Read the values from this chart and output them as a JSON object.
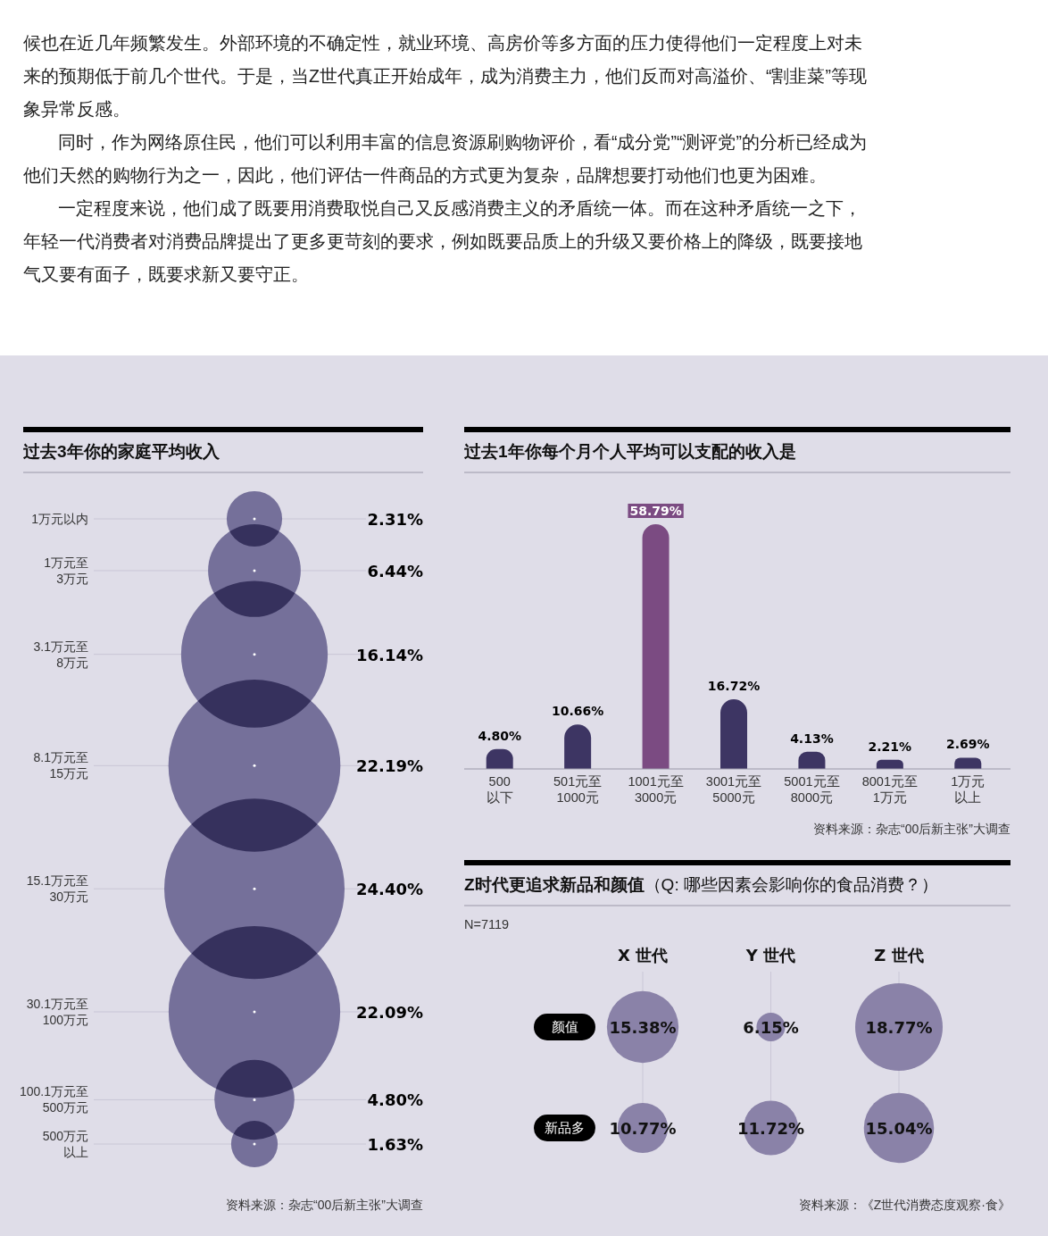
{
  "chart_data": [
    {
      "type": "other",
      "annotations": [
        "候也在近几年频繁发生。外部环境的不确定性，就业环境、高房价等多方面的压力使得他们一定程度上对未来的预期低于前几个世代。于是，当Z世代真正开始成年，成为消费主力，他们反而对高溢价、“割韭菜”等现象异常反感。",
        "同时，作为网络原住民，他们可以利用丰富的信息资源刷购物评价，看“成分党”“测评党”的分析已经成为他们天然的购物行为之一，因此，他们评估一件商品的方式更为复杂，品牌想要打动他们也更为困难。",
        "一定程度来说，他们成了既要用消费取悦自己又反感消费主义的矛盾统一体。而在这种矛盾统一之下，年轻一代消费者对消费品牌提出了更多更苛刻的要求，例如既要品质上的升级又要价格上的降级，既要接地气又要有面子，既要求新又要守正。"
      ]
    },
    {
      "type": "other",
      "title": "过去3年你的家庭平均收入",
      "categories": [
        "1万元以内",
        "1万元至3万元",
        "3.1万元至8万元",
        "8.1万元至15万元",
        "15.1万元至30万元",
        "30.1万元至100万元",
        "100.1万元至500万元",
        "500万元以上"
      ],
      "values": [
        2.31,
        6.44,
        16.14,
        22.19,
        24.4,
        22.09,
        4.8,
        1.63
      ],
      "value_labels": [
        "2.31%",
        "6.44%",
        "16.14%",
        "22.19%",
        "24.40%",
        "22.09%",
        "4.80%",
        "1.63%"
      ],
      "color": "#75709a",
      "annotations": [
        "资料来源：杂志“00后新主张”大调查"
      ]
    },
    {
      "type": "bar",
      "title": "过去1年你每个月个人平均可以支配的收入是",
      "categories": [
        "500以下",
        "501元至1000元",
        "1001元至3000元",
        "3001元至5000元",
        "5001元至8000元",
        "8001元至1万元",
        "1万元以上"
      ],
      "values": [
        4.8,
        10.66,
        58.79,
        16.72,
        4.13,
        2.21,
        2.69
      ],
      "value_labels": [
        "4.80%",
        "10.66%",
        "58.79%",
        "16.72%",
        "4.13%",
        "2.21%",
        "2.69%"
      ],
      "colors": [
        "#3d3563",
        "#3d3563",
        "#7b4b82",
        "#3d3563",
        "#3d3563",
        "#3d3563",
        "#3d3563"
      ],
      "annotations": [
        "资料来源：杂志“00后新主张”大调查"
      ]
    },
    {
      "type": "other",
      "title": "Z时代更追求新品和颜值",
      "subtitle": "（Q: 哪些因素会影响你的食品消费？）",
      "categories": [
        "X 世代",
        "Y 世代",
        "Z 世代"
      ],
      "series": [
        {
          "name": "颜值",
          "color": "#8a82a8",
          "values": [
            15.38,
            6.15,
            18.77
          ],
          "value_labels": [
            "15.38%",
            "6.15%",
            "18.77%"
          ]
        },
        {
          "name": "新品多",
          "color": "#8a82a8",
          "values": [
            10.77,
            11.72,
            15.04
          ],
          "value_labels": [
            "10.77%",
            "11.72%",
            "15.04%"
          ]
        }
      ],
      "annotations": [
        "N=7119",
        "资料来源：《Z世代消费态度观察·食》"
      ]
    }
  ]
}
